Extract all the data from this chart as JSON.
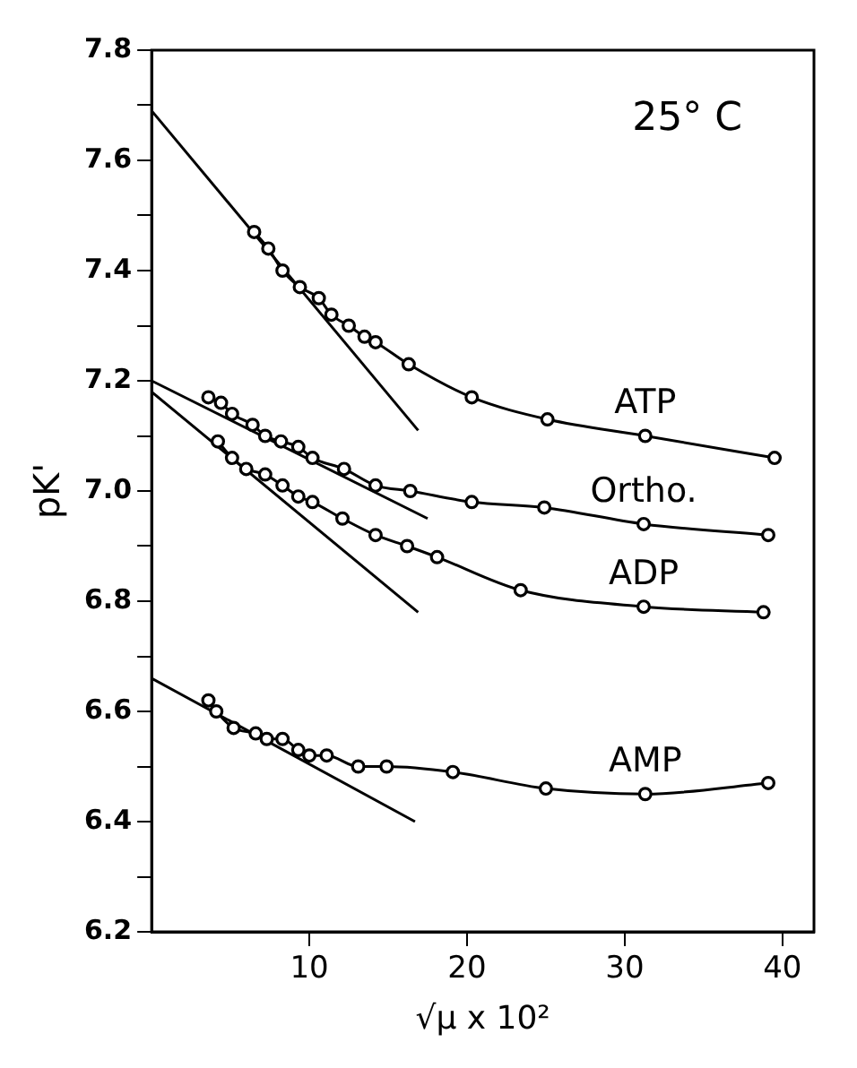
{
  "chart_data": {
    "type": "line",
    "xlabel": "√μ x 10²",
    "ylabel": "pK'",
    "annotations": [
      "25° C"
    ],
    "xlim": [
      0,
      42
    ],
    "xticks": [
      10,
      20,
      30,
      40
    ],
    "ylim": [
      6.2,
      7.8
    ],
    "yticks": [
      6.2,
      {
        "value": 6.3,
        "label": null
      },
      6.4,
      {
        "value": 6.5,
        "label": null
      },
      6.6,
      {
        "value": 6.7,
        "label": null
      },
      6.8,
      {
        "value": 6.9,
        "label": null
      },
      {
        "value": 7.0,
        "label": "7.0"
      },
      {
        "value": 7.1,
        "label": null
      },
      7.2,
      {
        "value": 7.3,
        "label": null
      },
      7.4,
      {
        "value": 7.5,
        "label": null
      },
      7.6,
      {
        "value": 7.7,
        "label": null
      },
      7.8
    ],
    "grid": false,
    "legend": false,
    "marker": "circle",
    "line_style": "solid",
    "series": [
      {
        "name": "ATP",
        "color": "#000000",
        "x": [
          6.5,
          7.4,
          8.3,
          9.4,
          10.6,
          11.4,
          12.5,
          13.5,
          14.2,
          16.3,
          20.3,
          25.1,
          31.3,
          39.5
        ],
        "values": [
          7.47,
          7.44,
          7.4,
          7.37,
          7.35,
          7.32,
          7.3,
          7.28,
          7.27,
          7.23,
          7.17,
          7.13,
          7.1,
          7.06
        ]
      },
      {
        "name": "Ortho.",
        "color": "#000000",
        "x": [
          3.6,
          4.4,
          5.1,
          6.4,
          7.2,
          8.2,
          9.3,
          10.2,
          12.2,
          14.2,
          16.4,
          20.3,
          24.9,
          31.2,
          39.1
        ],
        "values": [
          7.17,
          7.16,
          7.14,
          7.12,
          7.1,
          7.09,
          7.08,
          7.06,
          7.04,
          7.01,
          7.0,
          6.98,
          6.97,
          6.94,
          6.92
        ]
      },
      {
        "name": "ADP",
        "color": "#000000",
        "x": [
          4.2,
          5.1,
          6.0,
          7.2,
          8.3,
          9.3,
          10.2,
          12.1,
          14.2,
          16.2,
          18.1,
          23.4,
          31.2,
          38.8
        ],
        "values": [
          7.09,
          7.06,
          7.04,
          7.03,
          7.01,
          6.99,
          6.98,
          6.95,
          6.92,
          6.9,
          6.88,
          6.82,
          6.79,
          6.78
        ]
      },
      {
        "name": "AMP",
        "color": "#000000",
        "x": [
          3.6,
          4.1,
          5.2,
          6.6,
          7.3,
          8.3,
          9.3,
          10.0,
          11.1,
          13.1,
          14.9,
          19.1,
          25.0,
          31.3,
          39.1
        ],
        "values": [
          6.62,
          6.6,
          6.57,
          6.56,
          6.55,
          6.55,
          6.53,
          6.52,
          6.52,
          6.5,
          6.5,
          6.49,
          6.46,
          6.45,
          6.47
        ]
      },
      {
        "type": "line",
        "marker": "none",
        "color": "#000000",
        "x": [
          0,
          16.9
        ],
        "values": [
          7.69,
          7.11
        ]
      },
      {
        "type": "line",
        "marker": "none",
        "color": "#000000",
        "x": [
          0,
          17.5
        ],
        "values": [
          7.2,
          6.95
        ]
      },
      {
        "type": "line",
        "marker": "none",
        "color": "#000000",
        "x": [
          0,
          16.9
        ],
        "values": [
          7.18,
          6.78
        ]
      },
      {
        "type": "line",
        "marker": "none",
        "color": "#000000",
        "x": [
          0,
          16.7
        ],
        "values": [
          6.66,
          6.4
        ]
      }
    ]
  }
}
